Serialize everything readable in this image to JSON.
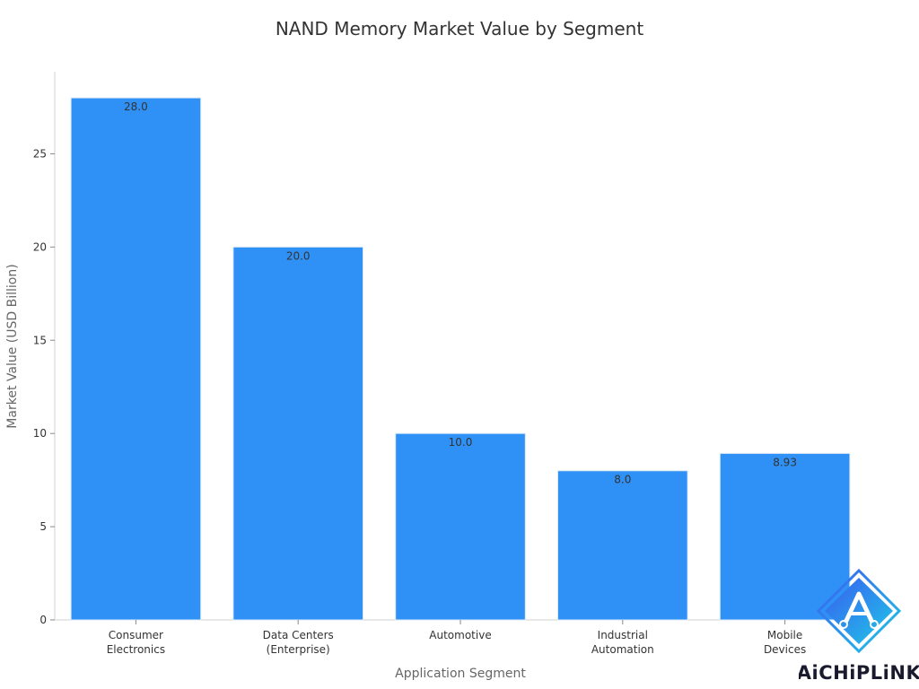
{
  "chart_data": {
    "type": "bar",
    "title": "NAND Memory Market Value by Segment",
    "xlabel": "Application Segment",
    "ylabel": "Market Value (USD Billion)",
    "categories": [
      [
        "Consumer",
        "Electronics"
      ],
      [
        "Data Centers",
        "(Enterprise)"
      ],
      [
        "Automotive"
      ],
      [
        "Industrial",
        "Automation"
      ],
      [
        "Mobile",
        "Devices"
      ]
    ],
    "values": [
      28.0,
      20.0,
      10.0,
      8.0,
      8.93
    ],
    "data_labels": [
      "28.0",
      "20.0",
      "10.0",
      "8.0",
      "8.93"
    ],
    "yticks": [
      0,
      5,
      10,
      15,
      20,
      25
    ],
    "ylim": [
      0,
      29.4
    ],
    "grid": false,
    "bar_color": "#2f91f5",
    "bar_edge_color": "#dbe9f7"
  },
  "watermark": {
    "text": "AiCHiPLiNK",
    "colors": [
      "#3a5cf0",
      "#1ec8e8"
    ],
    "icon": "chip-a-logo-icon"
  }
}
